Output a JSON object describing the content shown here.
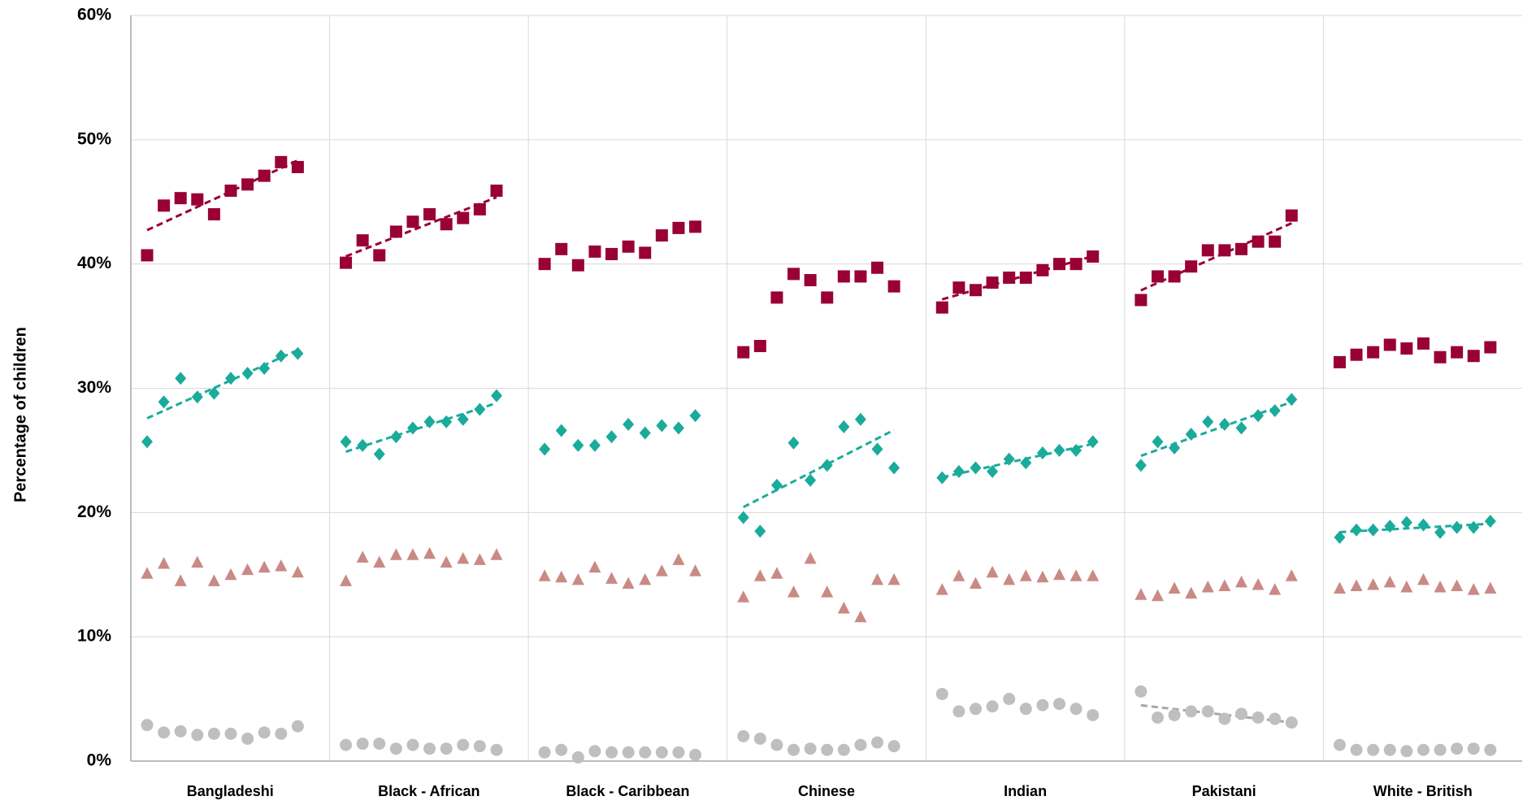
{
  "chart_data": {
    "type": "scatter",
    "y_label": "Percentage of children",
    "categories": [
      "Bangladeshi",
      "Black - African",
      "Black - Caribbean",
      "Chinese",
      "Indian",
      "Pakistani",
      "White - British"
    ],
    "ylim": [
      0,
      60
    ],
    "yticks": [
      {
        "value": 0,
        "label": "0%"
      },
      {
        "value": 10,
        "label": "10%"
      },
      {
        "value": 20,
        "label": "20%"
      },
      {
        "value": 30,
        "label": "30%"
      },
      {
        "value": 40,
        "label": "40%"
      },
      {
        "value": 50,
        "label": "50%"
      },
      {
        "value": 60,
        "label": "60%"
      }
    ],
    "grid": true,
    "series": [
      {
        "marker": "square",
        "color": "#990033",
        "trend": [
          true,
          true,
          false,
          false,
          true,
          true,
          false
        ],
        "values": [
          [
            40.7,
            44.7,
            45.3,
            45.2,
            44.0,
            45.9,
            46.4,
            47.1,
            48.2,
            47.8
          ],
          [
            40.1,
            41.9,
            40.7,
            42.6,
            43.4,
            44.0,
            43.2,
            43.7,
            44.4,
            45.9
          ],
          [
            40.0,
            41.2,
            39.9,
            41.0,
            40.8,
            41.4,
            40.9,
            42.3,
            42.9,
            43.0
          ],
          [
            32.9,
            33.4,
            37.3,
            39.2,
            38.7,
            37.3,
            39.0,
            39.0,
            39.7,
            38.2
          ],
          [
            36.5,
            38.1,
            37.9,
            38.5,
            38.9,
            38.9,
            39.5,
            40.0,
            40.0,
            40.6
          ],
          [
            37.1,
            39.0,
            39.0,
            39.8,
            41.1,
            41.1,
            41.2,
            41.8,
            41.8,
            43.9
          ],
          [
            32.1,
            32.7,
            32.9,
            33.5,
            33.2,
            33.6,
            32.5,
            32.9,
            32.6,
            33.3
          ]
        ]
      },
      {
        "marker": "diamond",
        "color": "#1aab9b",
        "trend": [
          true,
          true,
          false,
          true,
          true,
          true,
          true
        ],
        "values": [
          [
            25.7,
            28.9,
            30.8,
            29.3,
            29.6,
            30.8,
            31.2,
            31.6,
            32.6,
            32.8
          ],
          [
            25.7,
            25.4,
            24.7,
            26.1,
            26.8,
            27.3,
            27.3,
            27.5,
            28.3,
            29.4
          ],
          [
            25.1,
            26.6,
            25.4,
            25.4,
            26.1,
            27.1,
            26.4,
            27.0,
            26.8,
            27.8
          ],
          [
            19.6,
            18.5,
            22.2,
            25.6,
            22.6,
            23.8,
            26.9,
            27.5,
            25.1,
            23.6
          ],
          [
            22.8,
            23.3,
            23.6,
            23.3,
            24.3,
            24.0,
            24.8,
            25.0,
            25.0,
            25.7
          ],
          [
            23.8,
            25.7,
            25.2,
            26.3,
            27.3,
            27.1,
            26.8,
            27.8,
            28.2,
            29.1
          ],
          [
            18.0,
            18.6,
            18.6,
            18.9,
            19.2,
            19.0,
            18.4,
            18.8,
            18.8,
            19.3
          ]
        ]
      },
      {
        "marker": "triangle",
        "color": "#c98a85",
        "trend": [
          false,
          false,
          false,
          false,
          false,
          false,
          false
        ],
        "values": [
          [
            15.1,
            15.9,
            14.5,
            16.0,
            14.5,
            15.0,
            15.4,
            15.6,
            15.7,
            15.2
          ],
          [
            14.5,
            16.4,
            16.0,
            16.6,
            16.6,
            16.7,
            16.0,
            16.3,
            16.2,
            16.6
          ],
          [
            14.9,
            14.8,
            14.6,
            15.6,
            14.7,
            14.3,
            14.6,
            15.3,
            16.2,
            15.3
          ],
          [
            13.2,
            14.9,
            15.1,
            13.6,
            16.3,
            13.6,
            12.3,
            11.6,
            14.6,
            14.6
          ],
          [
            13.8,
            14.9,
            14.3,
            15.2,
            14.6,
            14.9,
            14.8,
            15.0,
            14.9,
            14.9
          ],
          [
            13.4,
            13.3,
            13.9,
            13.5,
            14.0,
            14.1,
            14.4,
            14.2,
            13.8,
            14.9
          ],
          [
            13.9,
            14.1,
            14.2,
            14.4,
            14.0,
            14.6,
            14.0,
            14.1,
            13.8,
            13.9
          ]
        ]
      },
      {
        "marker": "circle",
        "color": "#bfbfbf",
        "trend_color": "#a6a6a6",
        "trend": [
          false,
          false,
          false,
          false,
          false,
          true,
          false
        ],
        "values": [
          [
            2.9,
            2.3,
            2.4,
            2.1,
            2.2,
            2.2,
            1.8,
            2.3,
            2.2,
            2.8
          ],
          [
            1.3,
            1.4,
            1.4,
            1.0,
            1.3,
            1.0,
            1.0,
            1.3,
            1.2,
            0.9
          ],
          [
            0.7,
            0.9,
            0.3,
            0.8,
            0.7,
            0.7,
            0.7,
            0.7,
            0.7,
            0.5
          ],
          [
            2.0,
            1.8,
            1.3,
            0.9,
            1.0,
            0.9,
            0.9,
            1.3,
            1.5,
            1.2
          ],
          [
            5.4,
            4.0,
            4.2,
            4.4,
            5.0,
            4.2,
            4.5,
            4.6,
            4.2,
            3.7
          ],
          [
            5.6,
            3.5,
            3.7,
            4.0,
            4.0,
            3.4,
            3.8,
            3.5,
            3.4,
            3.1
          ],
          [
            1.3,
            0.9,
            0.9,
            0.9,
            0.8,
            0.9,
            0.9,
            1.0,
            1.0,
            0.9
          ]
        ]
      }
    ]
  }
}
